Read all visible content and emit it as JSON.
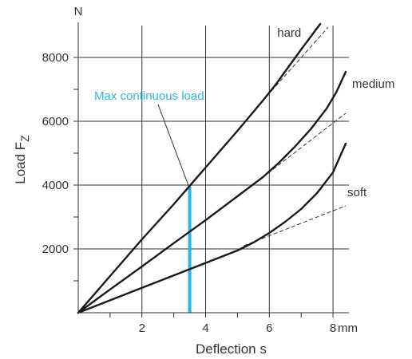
{
  "chart_data": {
    "type": "line",
    "xlabel": "Deflection s",
    "ylabel": "Load F",
    "ylabel_sub": "Z",
    "x_unit": "mm",
    "y_unit": "N",
    "xlim": [
      0,
      8.5
    ],
    "ylim": [
      0,
      9000
    ],
    "x_ticks": [
      2,
      4,
      6,
      8
    ],
    "x_minor_ticks": [
      1,
      3,
      5,
      7
    ],
    "y_ticks": [
      2000,
      4000,
      6000,
      8000
    ],
    "y_minor_ticks": [
      1000,
      3000,
      5000,
      7000
    ],
    "x_gridlines": [
      2,
      4,
      6,
      8
    ],
    "y_gridlines": [
      2000,
      4000,
      6000,
      8000
    ],
    "grid": true,
    "series": [
      {
        "name": "hard",
        "x": [
          0,
          1,
          2,
          3,
          4,
          5,
          5.8,
          6.2,
          6.6,
          7.0,
          7.3,
          7.6
        ],
        "y": [
          0,
          1150,
          2300,
          3400,
          4550,
          5700,
          6650,
          7150,
          7700,
          8250,
          8650,
          9050
        ],
        "linear_extension": {
          "x": [
            5.8,
            7.85
          ],
          "y": [
            6650,
            8950
          ]
        }
      },
      {
        "name": "medium",
        "x": [
          0,
          1,
          2,
          3,
          4,
          5,
          5.8,
          6.3,
          6.8,
          7.3,
          7.8,
          8.1,
          8.4
        ],
        "y": [
          0,
          730,
          1450,
          2180,
          2900,
          3650,
          4250,
          4700,
          5200,
          5750,
          6400,
          6900,
          7550
        ],
        "linear_extension": {
          "x": [
            5.8,
            8.4
          ],
          "y": [
            4250,
            6250
          ]
        }
      },
      {
        "name": "soft",
        "x": [
          0,
          1,
          2,
          3,
          4,
          5,
          5.5,
          6,
          6.5,
          7,
          7.5,
          8,
          8.4
        ],
        "y": [
          0,
          390,
          780,
          1170,
          1560,
          1950,
          2200,
          2500,
          2850,
          3250,
          3750,
          4400,
          5300
        ],
        "linear_extension": {
          "x": [
            5.2,
            8.4
          ],
          "y": [
            2100,
            3350
          ]
        }
      }
    ],
    "annotations": [
      {
        "text": "Max continuous load",
        "color": "#29b6e6",
        "marker_x": 3.5,
        "marker_y_top": 3950,
        "leader_to": [
          3.5,
          3950
        ]
      }
    ],
    "colors": {
      "curve": "#1a1a1a",
      "grid": "#333333",
      "extension": "#333333",
      "highlight": "#29b6e6",
      "text": "#333333"
    }
  }
}
